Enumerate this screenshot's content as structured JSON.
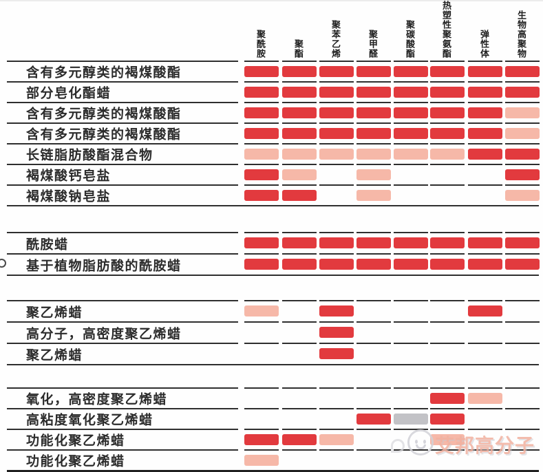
{
  "palette": {
    "red": "#e23a3e",
    "pink": "#f6b8a8",
    "gray": "#c2c2c6"
  },
  "watermark": {
    "text": "艾邦高分子",
    "icon": "wechat-emoji-icon"
  },
  "chart_data": {
    "type": "heatmap",
    "title": "",
    "columns": [
      "聚酰胺",
      "聚酯",
      "聚苯乙烯",
      "聚甲醛",
      "聚碳酸酯",
      "热塑性聚氨酯",
      "弹性体",
      "生物高聚物"
    ],
    "cell_legend": {
      "red": "deep red bar",
      "pink": "light salmon bar",
      "gray": "gray bar",
      "null": "empty cell"
    },
    "row_groups": [
      {
        "rows": [
          {
            "label": "含有多元醇类的褐煤酸酯",
            "values": [
              "red",
              "red",
              "red",
              "red",
              "red",
              "red",
              "red",
              "red"
            ]
          },
          {
            "label": "部分皂化酯蜡",
            "values": [
              "red",
              "red",
              "red",
              "red",
              "red",
              "red",
              "red",
              "red"
            ]
          },
          {
            "label": "含有多元醇类的褐煤酸酯",
            "values": [
              "red",
              "red",
              "red",
              "red",
              "red",
              "red",
              "red",
              "pink"
            ]
          },
          {
            "label": "含有多元醇类的褐煤酸酯",
            "values": [
              "red",
              "red",
              "red",
              "red",
              "red",
              "red",
              "red",
              "pink"
            ]
          },
          {
            "label": "长链脂肪酸酯混合物",
            "values": [
              "pink",
              "pink",
              "pink",
              "pink",
              "pink",
              "pink",
              "red",
              "red"
            ]
          },
          {
            "label": "褐煤酸钙皂盐",
            "values": [
              "red",
              "pink",
              null,
              "pink",
              null,
              null,
              null,
              "red"
            ]
          },
          {
            "label": "褐煤酸钠皂盐",
            "values": [
              "red",
              "red",
              null,
              "pink",
              null,
              null,
              null,
              "pink"
            ]
          }
        ]
      },
      {
        "rows": [
          {
            "label": "酰胺蜡",
            "values": [
              "red",
              "red",
              "red",
              "red",
              "red",
              "red",
              "red",
              "red"
            ]
          },
          {
            "label": "基于植物脂肪酸的酰胺蜡",
            "values": [
              "red",
              "red",
              "red",
              "red",
              "red",
              "red",
              "red",
              "red"
            ]
          }
        ]
      },
      {
        "rows": [
          {
            "label": "聚乙烯蜡",
            "values": [
              "pink",
              null,
              "red",
              null,
              null,
              null,
              "red",
              null
            ]
          },
          {
            "label": "高分子，高密度聚乙烯蜡",
            "values": [
              null,
              null,
              "red",
              null,
              null,
              null,
              null,
              null
            ]
          },
          {
            "label": "聚乙烯蜡",
            "values": [
              null,
              null,
              "red",
              null,
              null,
              null,
              null,
              null
            ]
          }
        ]
      },
      {
        "rows": [
          {
            "label": "氧化，高密度聚乙烯蜡",
            "values": [
              null,
              null,
              null,
              null,
              null,
              "red",
              "pink",
              null
            ]
          },
          {
            "label": "高粘度氧化聚乙烯蜡",
            "values": [
              null,
              null,
              null,
              "red",
              "gray",
              "red",
              null,
              null
            ]
          },
          {
            "label": "功能化聚乙烯蜡",
            "values": [
              "red",
              "red",
              "pink",
              null,
              null,
              "pink",
              null,
              null
            ]
          },
          {
            "label": "功能化聚乙烯蜡",
            "values": [
              "pink",
              null,
              null,
              null,
              null,
              null,
              null,
              null
            ]
          }
        ]
      }
    ]
  }
}
